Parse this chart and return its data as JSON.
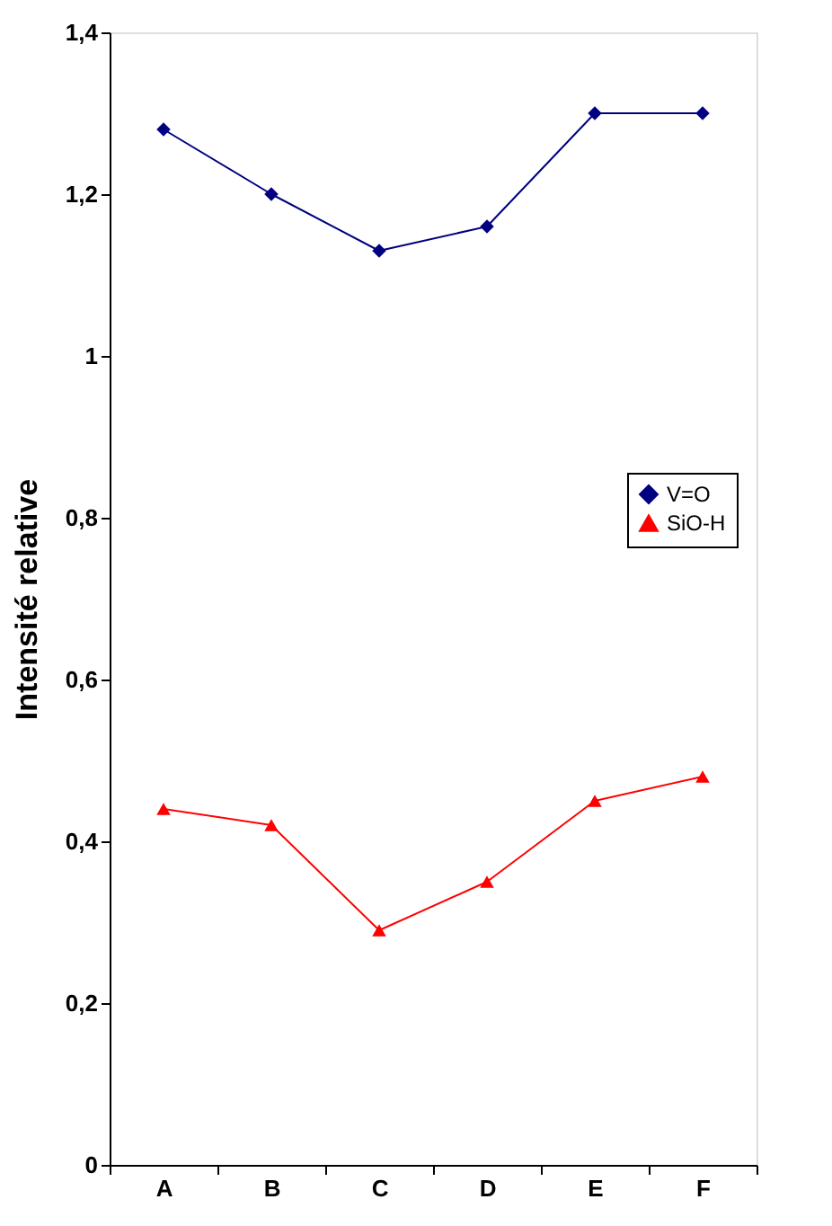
{
  "chart_data": {
    "type": "line",
    "ylabel": "Intensité relative",
    "categories": [
      "A",
      "B",
      "C",
      "D",
      "E",
      "F"
    ],
    "series": [
      {
        "name": "V=O",
        "color": "#000080",
        "marker": "diamond",
        "values": [
          1.28,
          1.2,
          1.13,
          1.16,
          1.3,
          1.3
        ]
      },
      {
        "name": "SiO-H",
        "color": "#ff0000",
        "marker": "triangle",
        "values": [
          0.44,
          0.42,
          0.29,
          0.35,
          0.45,
          0.48
        ]
      }
    ],
    "ylim": [
      0,
      1.4
    ],
    "yticks": [
      0,
      {
        "value": 0.2,
        "label": "0,2"
      },
      {
        "value": 0.4,
        "label": "0,4"
      },
      {
        "value": 0.6,
        "label": "0,6"
      },
      {
        "value": 0.8,
        "label": "0,8"
      },
      1,
      {
        "value": 1.2,
        "label": "1,2"
      },
      {
        "value": 1.4,
        "label": "1,4"
      }
    ],
    "grid": false,
    "legend": "right",
    "line_style": "solid"
  }
}
